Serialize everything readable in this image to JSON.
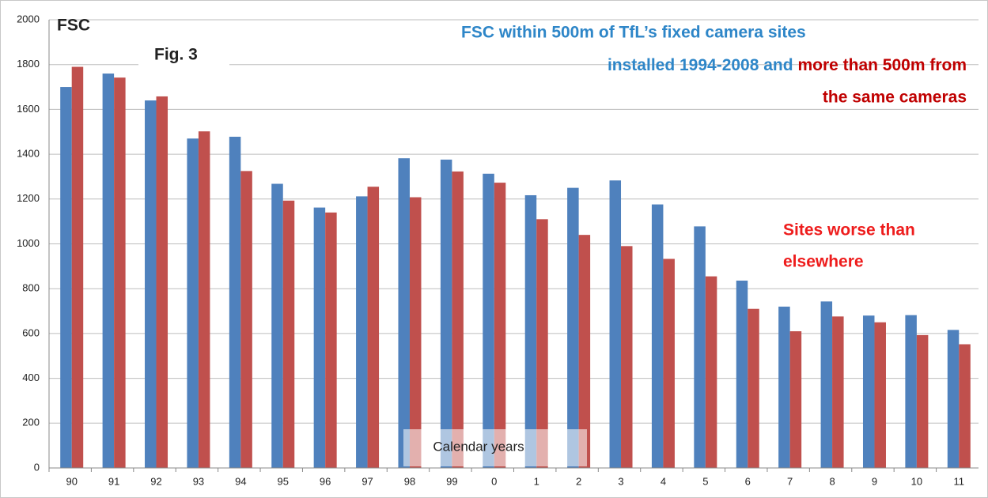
{
  "chart_data": {
    "type": "bar",
    "title_lines_blue": [
      "FSC within 500m of TfL’s fixed camera sites",
      "installed 1994-2008 and"
    ],
    "title_lines_red": [
      "more than 500m from",
      "the same cameras"
    ],
    "annotations": [
      "FSC",
      "Fig. 3"
    ],
    "note_lines": [
      "Sites worse than",
      "elsewhere"
    ],
    "x_label": "Calendar years",
    "categories": [
      "90",
      "91",
      "92",
      "93",
      "94",
      "95",
      "96",
      "97",
      "98",
      "99",
      "0",
      "1",
      "2",
      "3",
      "4",
      "5",
      "6",
      "7",
      "8",
      "9",
      "10",
      "11"
    ],
    "series": [
      {
        "color": "#4f81bd",
        "values": [
          1700,
          1760,
          1640,
          1470,
          1478,
          1268,
          1162,
          1212,
          1382,
          1376,
          1313,
          1217,
          1250,
          1283,
          1176,
          1078,
          836,
          720,
          743,
          680,
          682,
          616
        ]
      },
      {
        "color": "#c0504d",
        "values": [
          1790,
          1742,
          1658,
          1502,
          1325,
          1193,
          1140,
          1255,
          1208,
          1323,
          1273,
          1110,
          1040,
          990,
          933,
          855,
          710,
          610,
          676,
          650,
          593,
          552
        ]
      }
    ],
    "ylim": [
      0,
      2000
    ],
    "yticks": [
      0,
      200,
      400,
      600,
      800,
      1000,
      1200,
      1400,
      1600,
      1800,
      2000
    ],
    "grid": true
  }
}
